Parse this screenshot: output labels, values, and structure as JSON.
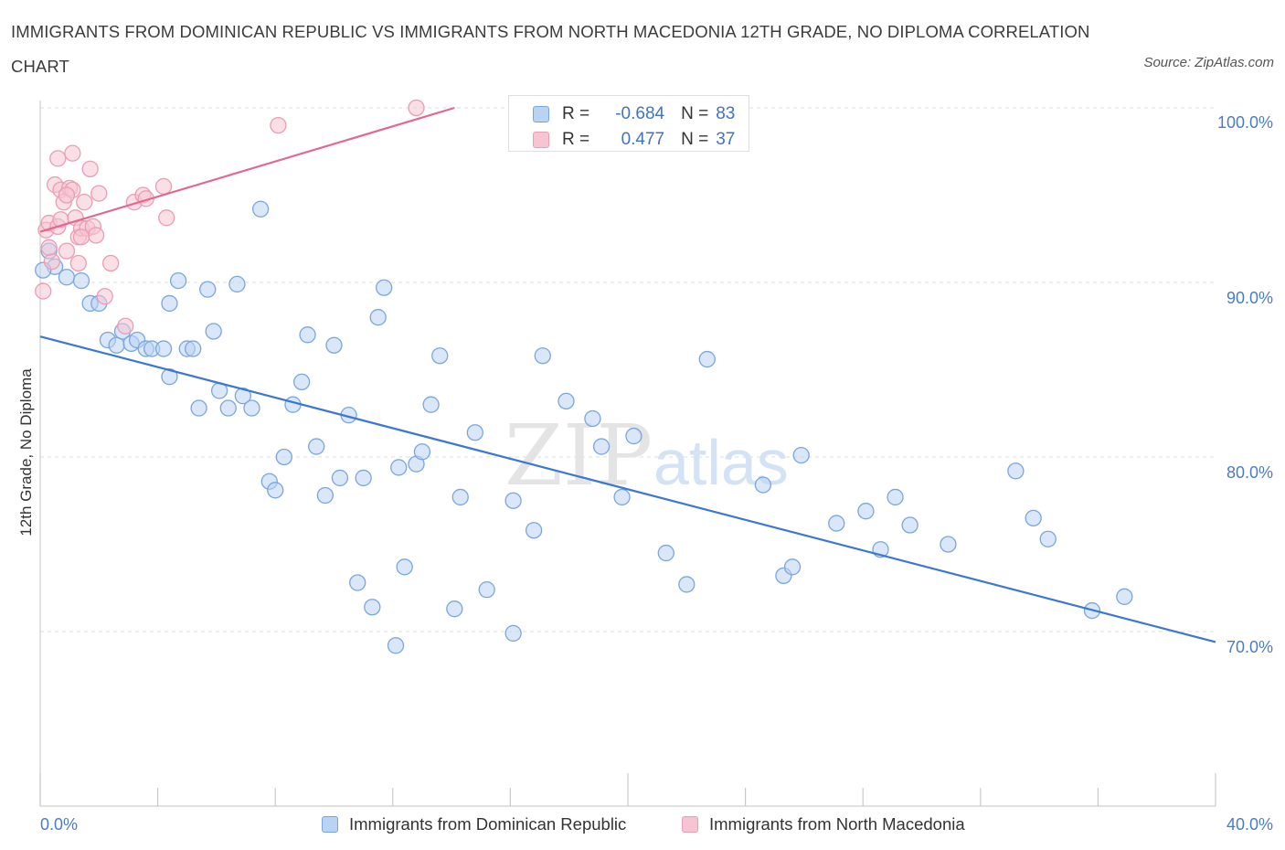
{
  "title": "IMMIGRANTS FROM DOMINICAN REPUBLIC VS IMMIGRANTS FROM NORTH MACEDONIA 12TH GRADE, NO DIPLOMA CORRELATION CHART",
  "source": "Source: ZipAtlas.com",
  "watermark": {
    "zip": "ZIP",
    "atlas": "atlas"
  },
  "colors": {
    "blue": "#3a78d4",
    "blue_fill": "#b9d3f3",
    "blue_stroke": "#7aa6df",
    "pink": "#e2698e",
    "pink_fill": "#f6c4d2",
    "pink_stroke": "#ea9db4",
    "tick_label": "#4a7cc9",
    "grid": "#dddddd"
  },
  "legend": {
    "r_label": "R =",
    "n_label": "N =",
    "rows": [
      {
        "r": "-0.684",
        "n": "83"
      },
      {
        "r": "0.477",
        "n": "37"
      }
    ]
  },
  "chart_data": {
    "type": "scatter",
    "title": "IMMIGRANTS FROM DOMINICAN REPUBLIC VS IMMIGRANTS FROM NORTH MACEDONIA 12TH GRADE, NO DIPLOMA CORRELATION CHART",
    "xlabel": "",
    "ylabel": "12th Grade, No Diploma",
    "x_unit": "%",
    "xlim": [
      0,
      40
    ],
    "ylim": [
      60,
      100
    ],
    "x_tick_labels": [
      "0.0%",
      "40.0%"
    ],
    "y_ticks": [
      70,
      80,
      90,
      100
    ],
    "y_tick_labels": [
      "70.0%",
      "80.0%",
      "90.0%",
      "100.0%"
    ],
    "grid": "horizontal dashed",
    "legend_position": "top-center and bottom",
    "series": [
      {
        "name": "Immigrants from Dominican Republic",
        "color": "#3a78d4",
        "r": -0.684,
        "n": 83,
        "trend": {
          "x": [
            0,
            40
          ],
          "y": [
            86.9,
            69.4
          ]
        },
        "points": [
          [
            0.3,
            91.8
          ],
          [
            0.5,
            90.9
          ],
          [
            0.9,
            90.3
          ],
          [
            1.4,
            90.1
          ],
          [
            1.7,
            88.8
          ],
          [
            2.0,
            88.8
          ],
          [
            2.3,
            86.7
          ],
          [
            2.6,
            86.4
          ],
          [
            2.8,
            87.2
          ],
          [
            3.1,
            86.5
          ],
          [
            3.3,
            86.7
          ],
          [
            3.6,
            86.2
          ],
          [
            3.8,
            86.2
          ],
          [
            4.4,
            88.8
          ],
          [
            4.2,
            86.2
          ],
          [
            4.4,
            84.6
          ],
          [
            4.7,
            90.1
          ],
          [
            5.0,
            86.2
          ],
          [
            5.2,
            86.2
          ],
          [
            5.4,
            82.8
          ],
          [
            5.7,
            89.6
          ],
          [
            5.9,
            87.2
          ],
          [
            6.1,
            83.8
          ],
          [
            6.4,
            82.8
          ],
          [
            6.7,
            89.9
          ],
          [
            6.9,
            83.5
          ],
          [
            7.2,
            82.8
          ],
          [
            7.5,
            94.2
          ],
          [
            7.8,
            78.6
          ],
          [
            8.0,
            78.1
          ],
          [
            8.3,
            80.0
          ],
          [
            8.6,
            83.0
          ],
          [
            8.9,
            84.3
          ],
          [
            9.1,
            87.0
          ],
          [
            9.4,
            80.6
          ],
          [
            9.7,
            77.8
          ],
          [
            10.0,
            86.4
          ],
          [
            10.2,
            78.8
          ],
          [
            10.5,
            82.4
          ],
          [
            10.8,
            72.8
          ],
          [
            11.0,
            78.8
          ],
          [
            11.3,
            71.4
          ],
          [
            11.5,
            88.0
          ],
          [
            11.7,
            89.7
          ],
          [
            12.1,
            69.2
          ],
          [
            12.2,
            79.4
          ],
          [
            12.4,
            73.7
          ],
          [
            12.8,
            79.6
          ],
          [
            13.0,
            80.3
          ],
          [
            13.3,
            83.0
          ],
          [
            13.6,
            85.8
          ],
          [
            14.1,
            71.3
          ],
          [
            14.3,
            77.7
          ],
          [
            14.8,
            81.4
          ],
          [
            15.2,
            72.4
          ],
          [
            16.1,
            69.9
          ],
          [
            16.1,
            77.5
          ],
          [
            16.8,
            75.8
          ],
          [
            17.1,
            85.8
          ],
          [
            17.9,
            83.2
          ],
          [
            18.8,
            82.2
          ],
          [
            19.1,
            80.6
          ],
          [
            19.8,
            77.7
          ],
          [
            20.2,
            81.2
          ],
          [
            21.3,
            74.5
          ],
          [
            22.0,
            72.7
          ],
          [
            22.7,
            85.6
          ],
          [
            24.6,
            78.4
          ],
          [
            25.3,
            73.2
          ],
          [
            25.6,
            73.7
          ],
          [
            25.9,
            80.1
          ],
          [
            27.1,
            76.2
          ],
          [
            28.1,
            76.9
          ],
          [
            28.6,
            74.7
          ],
          [
            29.1,
            77.7
          ],
          [
            29.6,
            76.1
          ],
          [
            30.9,
            75.0
          ],
          [
            33.2,
            79.2
          ],
          [
            33.8,
            76.5
          ],
          [
            34.3,
            75.3
          ],
          [
            35.8,
            71.2
          ],
          [
            36.9,
            72.0
          ],
          [
            0.1,
            90.7
          ]
        ]
      },
      {
        "name": "Immigrants from North Macedonia",
        "color": "#e2698e",
        "r": 0.477,
        "n": 37,
        "trend": {
          "x": [
            0,
            14.1
          ],
          "y": [
            92.9,
            100.0
          ]
        },
        "points": [
          [
            0.1,
            89.5
          ],
          [
            0.2,
            93.0
          ],
          [
            0.3,
            93.4
          ],
          [
            0.4,
            91.2
          ],
          [
            0.5,
            95.6
          ],
          [
            0.6,
            97.1
          ],
          [
            0.6,
            93.2
          ],
          [
            0.7,
            93.6
          ],
          [
            0.7,
            95.3
          ],
          [
            0.8,
            94.6
          ],
          [
            0.9,
            91.8
          ],
          [
            1.0,
            95.4
          ],
          [
            1.1,
            95.3
          ],
          [
            1.1,
            97.4
          ],
          [
            1.2,
            93.7
          ],
          [
            1.3,
            92.6
          ],
          [
            1.3,
            91.1
          ],
          [
            1.4,
            93.1
          ],
          [
            1.5,
            94.6
          ],
          [
            1.6,
            93.1
          ],
          [
            1.7,
            96.5
          ],
          [
            1.8,
            93.2
          ],
          [
            1.9,
            92.7
          ],
          [
            2.0,
            95.1
          ],
          [
            2.2,
            89.2
          ],
          [
            2.4,
            91.1
          ],
          [
            2.9,
            87.5
          ],
          [
            3.2,
            94.6
          ],
          [
            3.5,
            95.0
          ],
          [
            3.6,
            94.8
          ],
          [
            4.2,
            95.5
          ],
          [
            4.3,
            93.7
          ],
          [
            8.1,
            99.0
          ],
          [
            12.8,
            100.0
          ],
          [
            0.3,
            92.0
          ],
          [
            0.9,
            95.0
          ],
          [
            1.4,
            92.6
          ]
        ]
      }
    ]
  },
  "bottom_legend": [
    {
      "label": "Immigrants from Dominican Republic"
    },
    {
      "label": "Immigrants from North Macedonia"
    }
  ]
}
